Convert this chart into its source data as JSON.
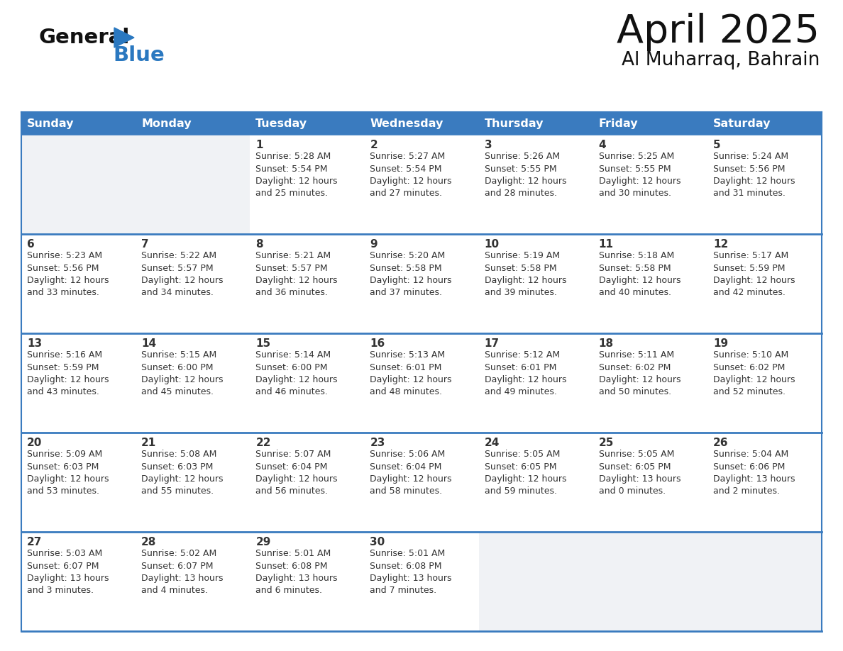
{
  "title": "April 2025",
  "subtitle": "Al Muharraq, Bahrain",
  "days_of_week": [
    "Sunday",
    "Monday",
    "Tuesday",
    "Wednesday",
    "Thursday",
    "Friday",
    "Saturday"
  ],
  "header_bg": "#3a7bbf",
  "header_text": "#ffffff",
  "cell_bg": "#ffffff",
  "empty_cell_bg": "#f0f2f5",
  "row_separator": "#3a7bbf",
  "day_number_color": "#333333",
  "text_color": "#333333",
  "calendar_data": [
    [
      {
        "day": null,
        "info": null
      },
      {
        "day": null,
        "info": null
      },
      {
        "day": 1,
        "info": "Sunrise: 5:28 AM\nSunset: 5:54 PM\nDaylight: 12 hours\nand 25 minutes."
      },
      {
        "day": 2,
        "info": "Sunrise: 5:27 AM\nSunset: 5:54 PM\nDaylight: 12 hours\nand 27 minutes."
      },
      {
        "day": 3,
        "info": "Sunrise: 5:26 AM\nSunset: 5:55 PM\nDaylight: 12 hours\nand 28 minutes."
      },
      {
        "day": 4,
        "info": "Sunrise: 5:25 AM\nSunset: 5:55 PM\nDaylight: 12 hours\nand 30 minutes."
      },
      {
        "day": 5,
        "info": "Sunrise: 5:24 AM\nSunset: 5:56 PM\nDaylight: 12 hours\nand 31 minutes."
      }
    ],
    [
      {
        "day": 6,
        "info": "Sunrise: 5:23 AM\nSunset: 5:56 PM\nDaylight: 12 hours\nand 33 minutes."
      },
      {
        "day": 7,
        "info": "Sunrise: 5:22 AM\nSunset: 5:57 PM\nDaylight: 12 hours\nand 34 minutes."
      },
      {
        "day": 8,
        "info": "Sunrise: 5:21 AM\nSunset: 5:57 PM\nDaylight: 12 hours\nand 36 minutes."
      },
      {
        "day": 9,
        "info": "Sunrise: 5:20 AM\nSunset: 5:58 PM\nDaylight: 12 hours\nand 37 minutes."
      },
      {
        "day": 10,
        "info": "Sunrise: 5:19 AM\nSunset: 5:58 PM\nDaylight: 12 hours\nand 39 minutes."
      },
      {
        "day": 11,
        "info": "Sunrise: 5:18 AM\nSunset: 5:58 PM\nDaylight: 12 hours\nand 40 minutes."
      },
      {
        "day": 12,
        "info": "Sunrise: 5:17 AM\nSunset: 5:59 PM\nDaylight: 12 hours\nand 42 minutes."
      }
    ],
    [
      {
        "day": 13,
        "info": "Sunrise: 5:16 AM\nSunset: 5:59 PM\nDaylight: 12 hours\nand 43 minutes."
      },
      {
        "day": 14,
        "info": "Sunrise: 5:15 AM\nSunset: 6:00 PM\nDaylight: 12 hours\nand 45 minutes."
      },
      {
        "day": 15,
        "info": "Sunrise: 5:14 AM\nSunset: 6:00 PM\nDaylight: 12 hours\nand 46 minutes."
      },
      {
        "day": 16,
        "info": "Sunrise: 5:13 AM\nSunset: 6:01 PM\nDaylight: 12 hours\nand 48 minutes."
      },
      {
        "day": 17,
        "info": "Sunrise: 5:12 AM\nSunset: 6:01 PM\nDaylight: 12 hours\nand 49 minutes."
      },
      {
        "day": 18,
        "info": "Sunrise: 5:11 AM\nSunset: 6:02 PM\nDaylight: 12 hours\nand 50 minutes."
      },
      {
        "day": 19,
        "info": "Sunrise: 5:10 AM\nSunset: 6:02 PM\nDaylight: 12 hours\nand 52 minutes."
      }
    ],
    [
      {
        "day": 20,
        "info": "Sunrise: 5:09 AM\nSunset: 6:03 PM\nDaylight: 12 hours\nand 53 minutes."
      },
      {
        "day": 21,
        "info": "Sunrise: 5:08 AM\nSunset: 6:03 PM\nDaylight: 12 hours\nand 55 minutes."
      },
      {
        "day": 22,
        "info": "Sunrise: 5:07 AM\nSunset: 6:04 PM\nDaylight: 12 hours\nand 56 minutes."
      },
      {
        "day": 23,
        "info": "Sunrise: 5:06 AM\nSunset: 6:04 PM\nDaylight: 12 hours\nand 58 minutes."
      },
      {
        "day": 24,
        "info": "Sunrise: 5:05 AM\nSunset: 6:05 PM\nDaylight: 12 hours\nand 59 minutes."
      },
      {
        "day": 25,
        "info": "Sunrise: 5:05 AM\nSunset: 6:05 PM\nDaylight: 13 hours\nand 0 minutes."
      },
      {
        "day": 26,
        "info": "Sunrise: 5:04 AM\nSunset: 6:06 PM\nDaylight: 13 hours\nand 2 minutes."
      }
    ],
    [
      {
        "day": 27,
        "info": "Sunrise: 5:03 AM\nSunset: 6:07 PM\nDaylight: 13 hours\nand 3 minutes."
      },
      {
        "day": 28,
        "info": "Sunrise: 5:02 AM\nSunset: 6:07 PM\nDaylight: 13 hours\nand 4 minutes."
      },
      {
        "day": 29,
        "info": "Sunrise: 5:01 AM\nSunset: 6:08 PM\nDaylight: 13 hours\nand 6 minutes."
      },
      {
        "day": 30,
        "info": "Sunrise: 5:01 AM\nSunset: 6:08 PM\nDaylight: 13 hours\nand 7 minutes."
      },
      {
        "day": null,
        "info": null
      },
      {
        "day": null,
        "info": null
      },
      {
        "day": null,
        "info": null
      }
    ]
  ]
}
